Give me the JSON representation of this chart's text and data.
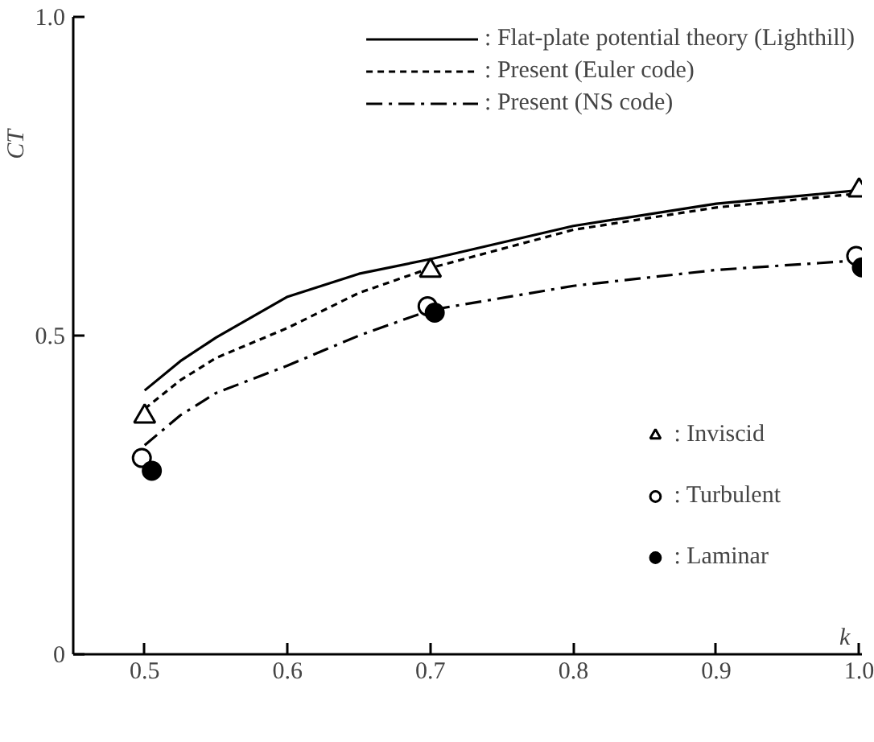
{
  "chart_data": {
    "type": "line",
    "xlabel": "k",
    "ylabel": "CT",
    "xlim": [
      0.45,
      1.002
    ],
    "ylim": [
      0,
      1.0
    ],
    "xticks": [
      0.5,
      0.6,
      0.7,
      0.8,
      0.9,
      {
        "value": 1.0,
        "label": "1.0"
      }
    ],
    "yticks": [
      0,
      0.5,
      {
        "value": 1.0,
        "label": "1.0"
      }
    ],
    "grid": false,
    "legend": "top right",
    "marker": "none",
    "series": [
      {
        "name": ": Flat-plate potential theory (Lighthill)",
        "color": "#000000",
        "line_style": "solid",
        "x": [
          0.5,
          0.525,
          0.55,
          0.6,
          0.65,
          0.7,
          0.8,
          0.9,
          1.0
        ],
        "values": [
          0.414,
          0.46,
          0.497,
          0.561,
          0.597,
          0.62,
          0.672,
          0.707,
          0.728
        ]
      },
      {
        "name": ": Present (Euler code)",
        "color": "#000000",
        "line_style": "dashed",
        "x": [
          0.5,
          0.525,
          0.55,
          0.6,
          0.65,
          0.7,
          0.8,
          0.9,
          1.0
        ],
        "values": [
          0.385,
          0.43,
          0.465,
          0.512,
          0.567,
          0.606,
          0.666,
          0.701,
          0.723
        ]
      },
      {
        "name": ": Present (NS code)",
        "color": "#000000",
        "line_style": "dashdot",
        "x": [
          0.5,
          0.525,
          0.55,
          0.6,
          0.65,
          0.7,
          0.8,
          0.9,
          1.0
        ],
        "values": [
          0.328,
          0.375,
          0.41,
          0.453,
          0.5,
          0.54,
          0.578,
          0.603,
          0.618
        ]
      },
      {
        "name": ": Inviscid",
        "color": "#ffffff",
        "type": "scatter",
        "marker": "triangle",
        "x": [
          0.5,
          0.7,
          1.0
        ],
        "values": [
          0.373,
          0.602,
          0.728
        ]
      },
      {
        "name": ": Turbulent",
        "color": "#ffffff",
        "type": "scatter",
        "marker": "circle",
        "x": [
          0.498,
          0.698,
          0.998
        ],
        "values": [
          0.308,
          0.546,
          0.625
        ]
      },
      {
        "name": ": Laminar",
        "color": "#000000",
        "type": "scatter",
        "marker": "circle",
        "x": [
          0.505,
          0.703,
          1.002
        ],
        "values": [
          0.288,
          0.536,
          0.607
        ]
      }
    ]
  }
}
